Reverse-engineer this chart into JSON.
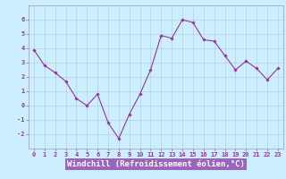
{
  "x": [
    0,
    1,
    2,
    3,
    4,
    5,
    6,
    7,
    8,
    9,
    10,
    11,
    12,
    13,
    14,
    15,
    16,
    17,
    18,
    19,
    20,
    21,
    22,
    23
  ],
  "y": [
    3.9,
    2.8,
    2.3,
    1.7,
    0.5,
    0.0,
    0.8,
    -1.2,
    -2.3,
    -0.6,
    0.8,
    2.5,
    4.9,
    4.7,
    6.0,
    5.8,
    4.6,
    4.5,
    3.5,
    2.5,
    3.1,
    2.6,
    1.8,
    2.6
  ],
  "line_color": "#993399",
  "marker": "D",
  "marker_size": 1.8,
  "linewidth": 0.8,
  "xlabel": "Windchill (Refroidissement éolien,°C)",
  "xlabel_fontsize": 6.5,
  "xlim": [
    -0.5,
    23.5
  ],
  "ylim": [
    -3,
    7
  ],
  "yticks": [
    -2,
    -1,
    0,
    1,
    2,
    3,
    4,
    5,
    6
  ],
  "xticks": [
    0,
    1,
    2,
    3,
    4,
    5,
    6,
    7,
    8,
    9,
    10,
    11,
    12,
    13,
    14,
    15,
    16,
    17,
    18,
    19,
    20,
    21,
    22,
    23
  ],
  "grid_color": "#aacccc",
  "bg_color": "#cceeff",
  "plot_bg": "#cceeff",
  "tick_fontsize": 5.0,
  "label_color": "#993399",
  "label_bg": "#9966bb",
  "label_fg": "#ffffff",
  "spine_color": "#9999bb"
}
